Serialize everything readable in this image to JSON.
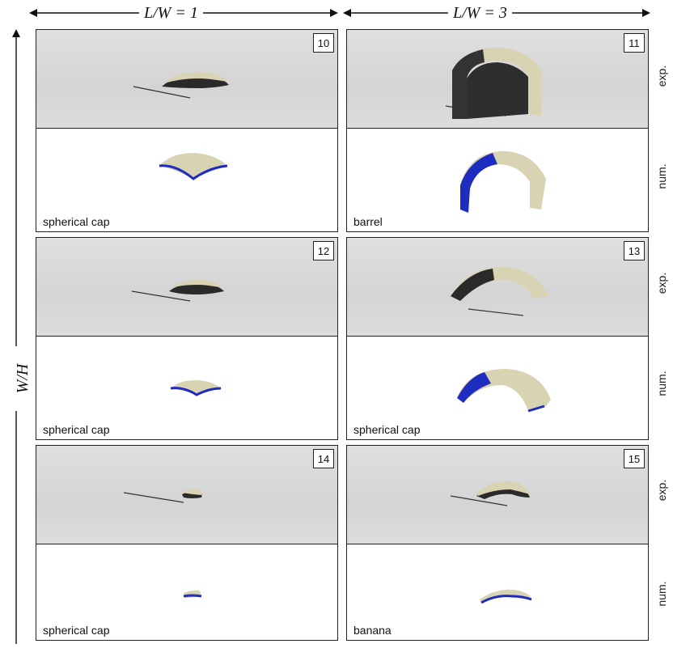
{
  "header": {
    "left_label": "L/W = 1",
    "right_label": "L/W = 3"
  },
  "axis": {
    "vertical_label": "W/H"
  },
  "row_labels": {
    "exp": "exp.",
    "num": "num."
  },
  "panels": [
    {
      "number": "10",
      "shape": "spherical cap"
    },
    {
      "number": "11",
      "shape": "barrel"
    },
    {
      "number": "12",
      "shape": "spherical cap"
    },
    {
      "number": "13",
      "shape": "spherical cap"
    },
    {
      "number": "14",
      "shape": "spherical cap"
    },
    {
      "number": "15",
      "shape": "banana"
    }
  ],
  "colors": {
    "shell_outer": "#d8d3b2",
    "shell_inner": "#1f2cc0",
    "background_exp": "#dadada",
    "frame": "#222222"
  }
}
